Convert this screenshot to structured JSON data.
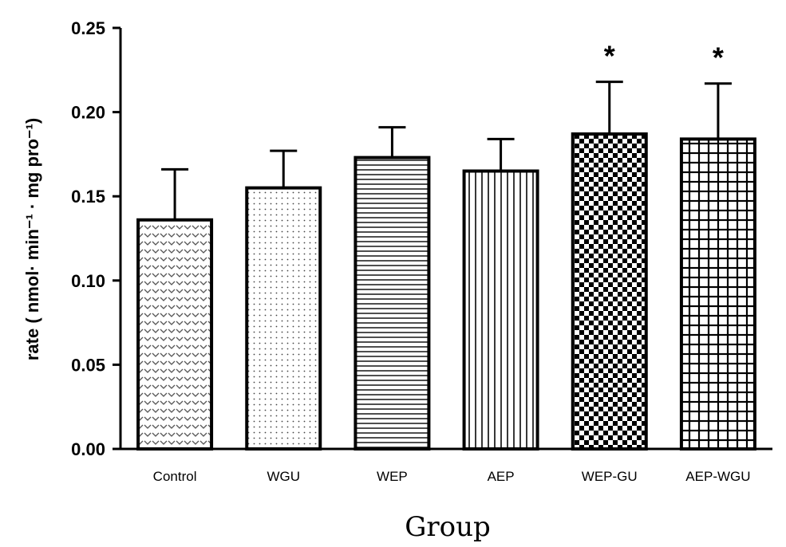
{
  "chart_data": {
    "type": "bar",
    "categories": [
      "Control",
      "WGU",
      "WEP",
      "AEP",
      "WEP-GU",
      "AEP-WGU"
    ],
    "values": [
      0.136,
      0.155,
      0.173,
      0.165,
      0.187,
      0.184
    ],
    "error_bars": [
      0.03,
      0.022,
      0.018,
      0.019,
      0.031,
      0.033
    ],
    "annotations": [
      "",
      "",
      "",
      "",
      "*",
      "*"
    ],
    "xlabel": "Group",
    "ylabel": "rate ( nmol· min⁻¹ · mg pro⁻¹)",
    "yticks": [
      "0.00",
      "0.05",
      "0.10",
      "0.15",
      "0.20",
      "0.25"
    ],
    "ylim": [
      0,
      0.25
    ],
    "grid": false,
    "legend": "none",
    "patterns": [
      "chevron",
      "dots",
      "horizontal-lines",
      "vertical-lines",
      "checker",
      "grid"
    ]
  }
}
